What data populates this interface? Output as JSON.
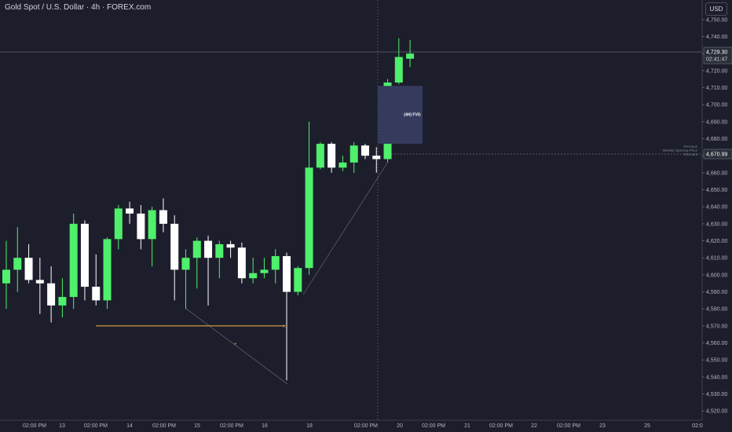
{
  "header": {
    "title": "Gold Spot / U.S. Dollar · 4h · FOREX.com",
    "currency": "USD"
  },
  "colors": {
    "background": "#1d1e2c",
    "bull": "#4ff06c",
    "bear": "#ffffff",
    "fvg_box": "#353b5c",
    "orange_line": "#f5b642",
    "grid_text": "#b2b5be"
  },
  "chart_data": {
    "type": "candlestick",
    "symbol": "Gold Spot / U.S. Dollar",
    "interval": "4h",
    "ylim": [
      4515,
      4760
    ],
    "y_ticks": [
      "4,750.00",
      "4,740.00",
      "4,730.00",
      "4,720.00",
      "4,710.00",
      "4,700.00",
      "4,690.00",
      "4,680.00",
      "4,670.00",
      "4,660.00",
      "4,650.00",
      "4,640.00",
      "4,630.00",
      "4,620.00",
      "4,610.00",
      "4,600.00",
      "4,590.00",
      "4,580.00",
      "4,570.00",
      "4,560.00",
      "4,550.00",
      "4,540.00",
      "4,530.00",
      "4,520.00"
    ],
    "x_ticks": [
      "02:00 PM",
      "13",
      "02:00 PM",
      "14",
      "02:00 PM",
      "15",
      "02:00 PM",
      "16",
      "18",
      "02:00 PM",
      "20",
      "02:00 PM",
      "21",
      "02:00 PM",
      "22",
      "02:00 PM",
      "23",
      "25",
      "02:0"
    ],
    "candles": [
      {
        "o": 4595,
        "h": 4620,
        "l": 4580,
        "c": 4603
      },
      {
        "o": 4603,
        "h": 4628,
        "l": 4590,
        "c": 4610
      },
      {
        "o": 4610,
        "h": 4618,
        "l": 4595,
        "c": 4597
      },
      {
        "o": 4597,
        "h": 4610,
        "l": 4577,
        "c": 4595
      },
      {
        "o": 4595,
        "h": 4605,
        "l": 4572,
        "c": 4582
      },
      {
        "o": 4582,
        "h": 4598,
        "l": 4575,
        "c": 4587
      },
      {
        "o": 4587,
        "h": 4636,
        "l": 4580,
        "c": 4630
      },
      {
        "o": 4630,
        "h": 4632,
        "l": 4585,
        "c": 4593
      },
      {
        "o": 4593,
        "h": 4612,
        "l": 4582,
        "c": 4585
      },
      {
        "o": 4585,
        "h": 4622,
        "l": 4580,
        "c": 4621
      },
      {
        "o": 4621,
        "h": 4641,
        "l": 4615,
        "c": 4639
      },
      {
        "o": 4639,
        "h": 4643,
        "l": 4630,
        "c": 4636
      },
      {
        "o": 4636,
        "h": 4641,
        "l": 4615,
        "c": 4621
      },
      {
        "o": 4621,
        "h": 4640,
        "l": 4605,
        "c": 4638
      },
      {
        "o": 4638,
        "h": 4645,
        "l": 4625,
        "c": 4630
      },
      {
        "o": 4630,
        "h": 4635,
        "l": 4585,
        "c": 4603
      },
      {
        "o": 4603,
        "h": 4615,
        "l": 4580,
        "c": 4610
      },
      {
        "o": 4610,
        "h": 4622,
        "l": 4592,
        "c": 4620
      },
      {
        "o": 4620,
        "h": 4623,
        "l": 4582,
        "c": 4610
      },
      {
        "o": 4610,
        "h": 4620,
        "l": 4598,
        "c": 4618
      },
      {
        "o": 4618,
        "h": 4620,
        "l": 4610,
        "c": 4616
      },
      {
        "o": 4616,
        "h": 4619,
        "l": 4595,
        "c": 4598
      },
      {
        "o": 4598,
        "h": 4610,
        "l": 4595,
        "c": 4601
      },
      {
        "o": 4601,
        "h": 4610,
        "l": 4598,
        "c": 4603
      },
      {
        "o": 4603,
        "h": 4615,
        "l": 4595,
        "c": 4611
      },
      {
        "o": 4611,
        "h": 4613,
        "l": 4538,
        "c": 4590
      },
      {
        "o": 4590,
        "h": 4605,
        "l": 4588,
        "c": 4604
      },
      {
        "o": 4604,
        "h": 4690,
        "l": 4600,
        "c": 4663
      },
      {
        "o": 4663,
        "h": 4678,
        "l": 4662,
        "c": 4677
      },
      {
        "o": 4677,
        "h": 4678,
        "l": 4660,
        "c": 4663
      },
      {
        "o": 4663,
        "h": 4670,
        "l": 4661,
        "c": 4666
      },
      {
        "o": 4666,
        "h": 4678,
        "l": 4660,
        "c": 4676
      },
      {
        "o": 4676,
        "h": 4677,
        "l": 4668,
        "c": 4670
      },
      {
        "o": 4670,
        "h": 4675,
        "l": 4660,
        "c": 4668
      },
      {
        "o": 4668,
        "h": 4715,
        "l": 4666,
        "c": 4713
      },
      {
        "o": 4713,
        "h": 4739,
        "l": 4712,
        "c": 4728
      },
      {
        "o": 4727,
        "h": 4738,
        "l": 4722,
        "c": 4730
      }
    ],
    "annotations": {
      "current_price": "4,729.30",
      "countdown": "02:41:47",
      "reference_price": "4,670.99",
      "reference_label_lines": [
        "Previous",
        "Weekly Opening Price",
        "Discount"
      ],
      "fvg_label": "(4H) FVG",
      "fvg_range": [
        4677,
        4711
      ],
      "orange_level": 4570
    }
  }
}
